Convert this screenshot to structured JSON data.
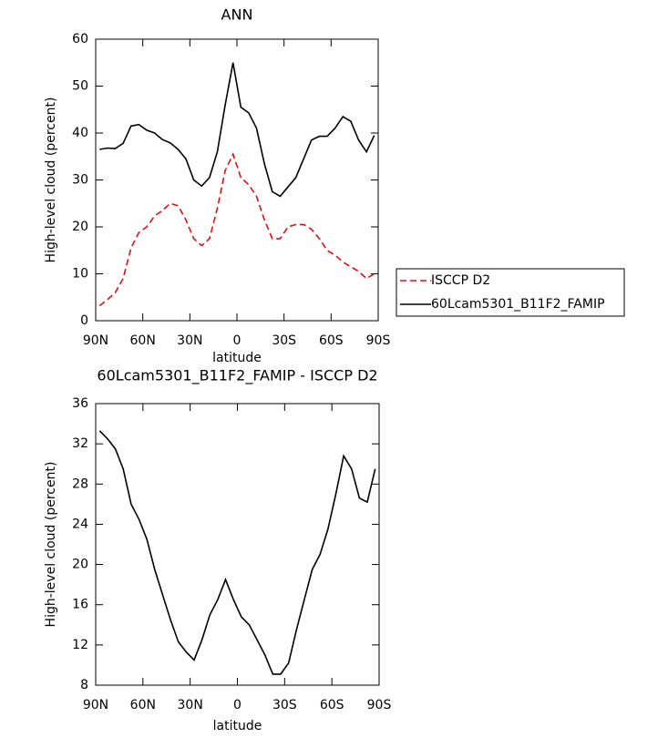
{
  "chart_data": [
    {
      "type": "line",
      "title": "ANN",
      "xlabel": "latitude",
      "ylabel": "High-level cloud (percent)",
      "x": [
        87.5,
        82.5,
        77.5,
        72.5,
        67.5,
        62.5,
        57.5,
        52.5,
        47.5,
        42.5,
        37.5,
        32.5,
        27.5,
        22.5,
        17.5,
        12.5,
        7.5,
        2.5,
        -2.5,
        -7.5,
        -12.5,
        -17.5,
        -22.5,
        -27.5,
        -32.5,
        -37.5,
        -42.5,
        -47.5,
        -52.5,
        -57.5,
        -62.5,
        -67.5,
        -72.5,
        -77.5,
        -82.5,
        -87.5
      ],
      "series": [
        {
          "name": "ISCCP D2",
          "color": "#e01010",
          "dashed": true,
          "values": [
            3.2,
            4.5,
            6,
            9,
            15.5,
            18.8,
            20,
            22.3,
            23.5,
            25,
            24.5,
            21.5,
            17.5,
            16,
            17.5,
            24,
            32,
            35.5,
            30.5,
            29,
            26.5,
            21.5,
            17.5,
            17.5,
            20,
            20.5,
            20.5,
            19.5,
            17.5,
            15,
            14,
            12.5,
            11.5,
            10.5,
            9,
            10
          ]
        },
        {
          "name": "60Lcam5301_B11F2_FAMIP",
          "color": "#000000",
          "dashed": false,
          "values": [
            36.5,
            36.8,
            36.7,
            37.8,
            41.5,
            41.8,
            40.6,
            40,
            38.6,
            37.9,
            36.5,
            34.5,
            30,
            28.7,
            30.5,
            36,
            46,
            55,
            45.5,
            44.3,
            41,
            33.5,
            27.5,
            26.5,
            28.5,
            30.5,
            34.5,
            38.5,
            39.3,
            39.3,
            41,
            43.5,
            42.5,
            38.5,
            36,
            39.5
          ]
        }
      ],
      "xlim": [
        90,
        -90
      ],
      "xticks": [
        {
          "value": 90,
          "label": "90N"
        },
        {
          "value": 60,
          "label": "60N"
        },
        {
          "value": 30,
          "label": "30N"
        },
        0,
        {
          "value": -30,
          "label": "30S"
        },
        {
          "value": -60,
          "label": "60S"
        },
        {
          "value": -90,
          "label": "90S"
        }
      ],
      "ylim": [
        0,
        60
      ],
      "yticks": [
        0,
        10,
        20,
        30,
        40,
        50,
        60
      ],
      "legend": "right"
    },
    {
      "type": "line",
      "title": "60Lcam5301_B11F2_FAMIP - ISCCP D2",
      "xlabel": "latitude",
      "ylabel": "High-level cloud (percent)",
      "x": [
        87.5,
        82.5,
        77.5,
        72.5,
        67.5,
        62.5,
        57.5,
        52.5,
        47.5,
        42.5,
        37.5,
        32.5,
        27.5,
        22.5,
        17.5,
        12.5,
        7.5,
        2.5,
        -2.5,
        -7.5,
        -12.5,
        -17.5,
        -22.5,
        -27.5,
        -32.5,
        -37.5,
        -42.5,
        -47.5,
        -52.5,
        -57.5,
        -62.5,
        -67.5,
        -72.5,
        -77.5,
        -82.5,
        -87.5
      ],
      "values": [
        33.3,
        32.5,
        31.5,
        29.5,
        26,
        24.5,
        22.5,
        19.5,
        17,
        14.5,
        12.3,
        11.3,
        10.5,
        12.5,
        15,
        16.5,
        18.5,
        16.5,
        14.8,
        14,
        12.5,
        11,
        9.1,
        9.1,
        10.2,
        13.5,
        16.5,
        19.5,
        21,
        23.5,
        27,
        30.8,
        29.5,
        26.6,
        26.2,
        29.5
      ],
      "color": "#000000",
      "xlim": [
        90,
        -90
      ],
      "xticks": [
        {
          "value": 90,
          "label": "90N"
        },
        {
          "value": 60,
          "label": "60N"
        },
        {
          "value": 30,
          "label": "30N"
        },
        0,
        {
          "value": -30,
          "label": "30S"
        },
        {
          "value": -60,
          "label": "60S"
        },
        {
          "value": -90,
          "label": "90S"
        }
      ],
      "ylim": [
        8,
        36
      ],
      "yticks": [
        8,
        12,
        16,
        20,
        24,
        28,
        32,
        36
      ]
    }
  ]
}
